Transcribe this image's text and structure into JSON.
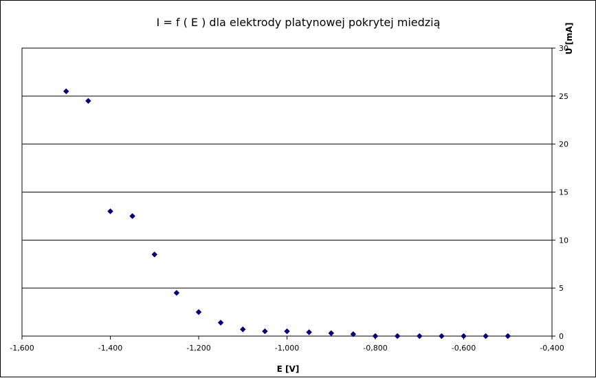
{
  "chart_data": {
    "type": "scatter",
    "title": "I = f ( E ) dla elektrody platynowej pokrytej miedzią",
    "xlabel": "E [V]",
    "ylabel": "U [mA]",
    "xlim": [
      -1.6,
      -0.4
    ],
    "ylim": [
      0,
      30
    ],
    "x_ticks": [
      -1.6,
      -1.4,
      -1.2,
      -1.0,
      -0.8,
      -0.6,
      -0.4
    ],
    "x_tick_labels": [
      "-1,600",
      "-1,400",
      "-1,200",
      "-1,000",
      "-0,800",
      "-0,600",
      "-0,400"
    ],
    "y_ticks": [
      0,
      5,
      10,
      15,
      20,
      25,
      30
    ],
    "y_tick_labels": [
      "0",
      "5",
      "10",
      "15",
      "20",
      "25",
      "30"
    ],
    "grid": "horizontal",
    "y_axis_position": "right",
    "legend": "none",
    "series": [
      {
        "color": "#000080",
        "marker": "diamond",
        "x": [
          -1.5,
          -1.45,
          -1.4,
          -1.35,
          -1.3,
          -1.25,
          -1.2,
          -1.15,
          -1.1,
          -1.05,
          -1.0,
          -0.95,
          -0.9,
          -0.85,
          -0.8,
          -0.75,
          -0.7,
          -0.65,
          -0.6,
          -0.55,
          -0.5
        ],
        "y": [
          25.5,
          24.5,
          13.0,
          12.5,
          8.5,
          4.5,
          2.5,
          1.4,
          0.7,
          0.5,
          0.5,
          0.4,
          0.3,
          0.2,
          0.0,
          0.0,
          0.0,
          0.0,
          0.0,
          0.0,
          0.0
        ]
      }
    ]
  }
}
